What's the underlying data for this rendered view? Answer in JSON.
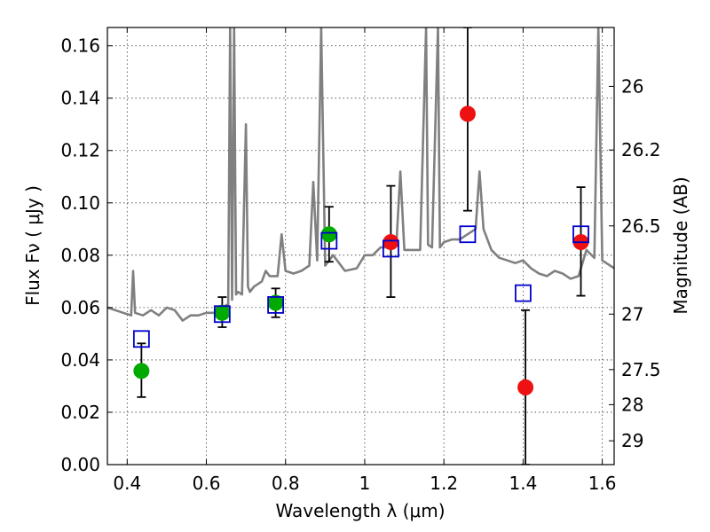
{
  "chart_data": {
    "type": "scatter",
    "xlabel": "Wavelength  λ (μm)",
    "ylabel": "Flux  Fν  ( μJy )",
    "y2label": "Magnitude (AB)",
    "xlim": [
      0.35,
      1.63
    ],
    "ylim": [
      0.0,
      0.167
    ],
    "x_ticks": [
      0.4,
      0.6,
      0.8,
      1.0,
      1.2,
      1.4,
      1.6
    ],
    "x_tick_labels": [
      "0.4",
      "0.6",
      "0.8",
      "1",
      "1.2",
      "1.4",
      "1.6"
    ],
    "y_ticks": [
      0.0,
      0.02,
      0.04,
      0.06,
      0.08,
      0.1,
      0.12,
      0.14,
      0.16
    ],
    "y_tick_labels": [
      "0.00",
      "0.02",
      "0.04",
      "0.06",
      "0.08",
      "0.10",
      "0.12",
      "0.14",
      "0.16"
    ],
    "y2_ticks": [
      {
        "label": "26",
        "flux": 0.1445
      },
      {
        "label": "26.2",
        "flux": 0.1202
      },
      {
        "label": "26.5",
        "flux": 0.0912
      },
      {
        "label": "27",
        "flux": 0.0575
      },
      {
        "label": "27.5",
        "flux": 0.0363
      },
      {
        "label": "28",
        "flux": 0.0229
      },
      {
        "label": "29",
        "flux": 0.0091
      }
    ],
    "grid": true,
    "colors": {
      "model": "#808080",
      "optical": "#00aa00",
      "nir": "#ee1111",
      "model_photometry": "#0000cc",
      "errorbar": "#000000"
    },
    "series": [
      {
        "kind": "line",
        "points": [
          [
            0.35,
            0.06
          ],
          [
            0.37,
            0.059
          ],
          [
            0.39,
            0.058
          ],
          [
            0.41,
            0.057
          ],
          [
            0.415,
            0.074
          ],
          [
            0.42,
            0.058
          ],
          [
            0.44,
            0.057
          ],
          [
            0.46,
            0.059
          ],
          [
            0.48,
            0.057
          ],
          [
            0.5,
            0.06
          ],
          [
            0.52,
            0.059
          ],
          [
            0.54,
            0.055
          ],
          [
            0.56,
            0.057
          ],
          [
            0.58,
            0.057
          ],
          [
            0.6,
            0.058
          ],
          [
            0.62,
            0.058
          ],
          [
            0.64,
            0.058
          ],
          [
            0.65,
            0.061
          ],
          [
            0.655,
            0.06
          ],
          [
            0.66,
            0.167
          ],
          [
            0.665,
            0.063
          ],
          [
            0.67,
            0.167
          ],
          [
            0.675,
            0.065
          ],
          [
            0.68,
            0.066
          ],
          [
            0.69,
            0.065
          ],
          [
            0.7,
            0.13
          ],
          [
            0.705,
            0.068
          ],
          [
            0.71,
            0.066
          ],
          [
            0.72,
            0.068
          ],
          [
            0.74,
            0.07
          ],
          [
            0.75,
            0.074
          ],
          [
            0.76,
            0.072
          ],
          [
            0.78,
            0.072
          ],
          [
            0.79,
            0.088
          ],
          [
            0.8,
            0.074
          ],
          [
            0.82,
            0.073
          ],
          [
            0.84,
            0.074
          ],
          [
            0.86,
            0.076
          ],
          [
            0.87,
            0.108
          ],
          [
            0.88,
            0.078
          ],
          [
            0.89,
            0.167
          ],
          [
            0.9,
            0.076
          ],
          [
            0.92,
            0.08
          ],
          [
            0.95,
            0.074
          ],
          [
            0.98,
            0.075
          ],
          [
            1.0,
            0.08
          ],
          [
            1.02,
            0.08
          ],
          [
            1.04,
            0.083
          ],
          [
            1.06,
            0.083
          ],
          [
            1.08,
            0.084
          ],
          [
            1.09,
            0.112
          ],
          [
            1.1,
            0.082
          ],
          [
            1.12,
            0.082
          ],
          [
            1.14,
            0.082
          ],
          [
            1.155,
            0.167
          ],
          [
            1.16,
            0.084
          ],
          [
            1.17,
            0.083
          ],
          [
            1.185,
            0.167
          ],
          [
            1.19,
            0.083
          ],
          [
            1.2,
            0.085
          ],
          [
            1.22,
            0.086
          ],
          [
            1.24,
            0.086
          ],
          [
            1.26,
            0.088
          ],
          [
            1.28,
            0.09
          ],
          [
            1.29,
            0.112
          ],
          [
            1.3,
            0.09
          ],
          [
            1.32,
            0.082
          ],
          [
            1.34,
            0.079
          ],
          [
            1.36,
            0.078
          ],
          [
            1.38,
            0.077
          ],
          [
            1.4,
            0.078
          ],
          [
            1.42,
            0.075
          ],
          [
            1.44,
            0.073
          ],
          [
            1.46,
            0.072
          ],
          [
            1.48,
            0.074
          ],
          [
            1.5,
            0.073
          ],
          [
            1.52,
            0.071
          ],
          [
            1.54,
            0.072
          ],
          [
            1.56,
            0.082
          ],
          [
            1.58,
            0.079
          ],
          [
            1.59,
            0.167
          ],
          [
            1.6,
            0.078
          ],
          [
            1.62,
            0.076
          ],
          [
            1.63,
            0.075
          ]
        ]
      },
      {
        "kind": "points",
        "marker": "circle",
        "color": "#00aa00",
        "points": [
          {
            "x": 0.436,
            "y": 0.0358,
            "err_low": 0.01,
            "err_high": 0.0105
          },
          {
            "x": 0.64,
            "y": 0.058,
            "err_low": 0.0055,
            "err_high": 0.006
          },
          {
            "x": 0.775,
            "y": 0.0618,
            "err_low": 0.0055,
            "err_high": 0.0055
          },
          {
            "x": 0.91,
            "y": 0.088,
            "err_low": 0.0105,
            "err_high": 0.0105
          }
        ]
      },
      {
        "kind": "points",
        "marker": "circle",
        "color": "#ee1111",
        "points": [
          {
            "x": 1.066,
            "y": 0.085,
            "err_low": 0.021,
            "err_high": 0.0215
          },
          {
            "x": 1.26,
            "y": 0.134,
            "err_low": 0.037,
            "err_high": 0.033
          },
          {
            "x": 1.406,
            "y": 0.0295,
            "err_low": 0.0295,
            "err_high": 0.0295
          },
          {
            "x": 1.546,
            "y": 0.085,
            "err_low": 0.0205,
            "err_high": 0.021
          }
        ]
      },
      {
        "kind": "points",
        "marker": "open-square",
        "color": "#0000cc",
        "points": [
          {
            "x": 0.436,
            "y": 0.048
          },
          {
            "x": 0.64,
            "y": 0.0575
          },
          {
            "x": 0.775,
            "y": 0.061
          },
          {
            "x": 0.91,
            "y": 0.0855
          },
          {
            "x": 1.066,
            "y": 0.0825
          },
          {
            "x": 1.26,
            "y": 0.088
          },
          {
            "x": 1.4,
            "y": 0.0655
          },
          {
            "x": 1.546,
            "y": 0.088
          }
        ]
      }
    ]
  }
}
